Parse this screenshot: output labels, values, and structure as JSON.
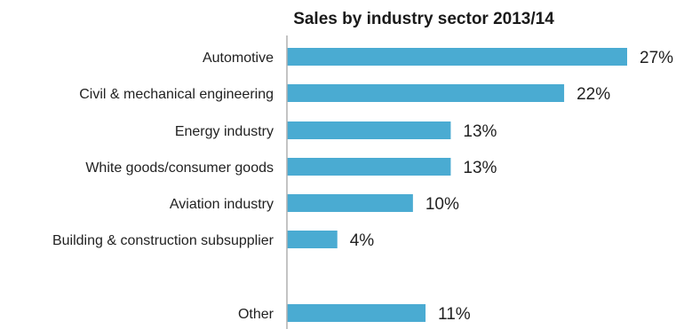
{
  "colors": {
    "bar": "#4aabd2",
    "axis": "#b0b0b0",
    "text": "#222222",
    "background": "#ffffff"
  },
  "chart_data": {
    "type": "bar",
    "orientation": "horizontal",
    "title": "Sales by industry sector 2013/14",
    "xlabel": "",
    "ylabel": "",
    "unit": "%",
    "xlim": [
      0,
      27
    ],
    "grid": false,
    "legend": "none",
    "categories": [
      "Automotive",
      "Civil & mechanical engineering",
      "Energy industry",
      "White goods/consumer goods",
      "Aviation industry",
      "Building & construction subsupplier",
      "Other"
    ],
    "values": [
      27,
      22,
      13,
      13,
      10,
      4,
      11
    ],
    "value_labels": [
      "27%",
      "22%",
      "13%",
      "13%",
      "10%",
      "4%",
      "11%"
    ]
  }
}
